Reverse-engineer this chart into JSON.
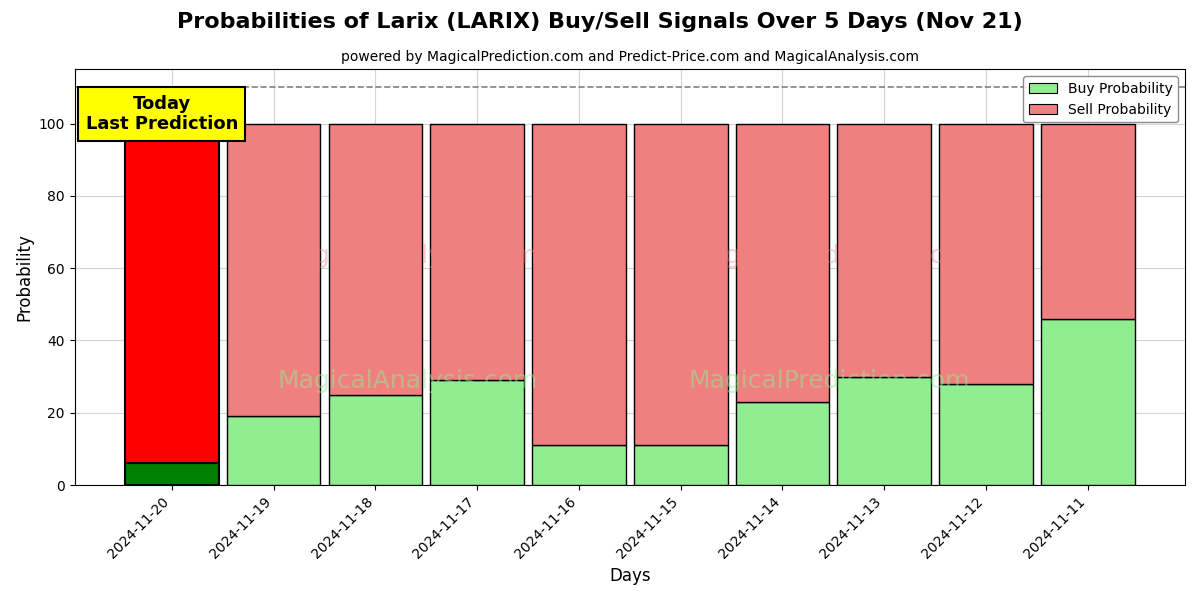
{
  "title": "Probabilities of Larix (LARIX) Buy/Sell Signals Over 5 Days (Nov 21)",
  "subtitle": "powered by MagicalPrediction.com and Predict-Price.com and MagicalAnalysis.com",
  "xlabel": "Days",
  "ylabel": "Probability",
  "dates": [
    "2024-11-20",
    "2024-11-19",
    "2024-11-18",
    "2024-11-17",
    "2024-11-16",
    "2024-11-15",
    "2024-11-14",
    "2024-11-13",
    "2024-11-12",
    "2024-11-11"
  ],
  "buy_prob": [
    6,
    19,
    25,
    29,
    11,
    11,
    23,
    30,
    28,
    46
  ],
  "sell_prob": [
    94,
    81,
    75,
    71,
    89,
    89,
    77,
    70,
    72,
    54
  ],
  "today_buy_color": "#008000",
  "today_sell_color": "#ff0000",
  "other_buy_color": "#90ee90",
  "other_sell_color": "#f08080",
  "today_label": "Today\nLast Prediction",
  "today_label_bg": "#ffff00",
  "legend_buy_color": "#90ee90",
  "legend_sell_color": "#f08080",
  "dashed_line_y": 110,
  "ylim": [
    0,
    115
  ],
  "background_color": "#ffffff"
}
